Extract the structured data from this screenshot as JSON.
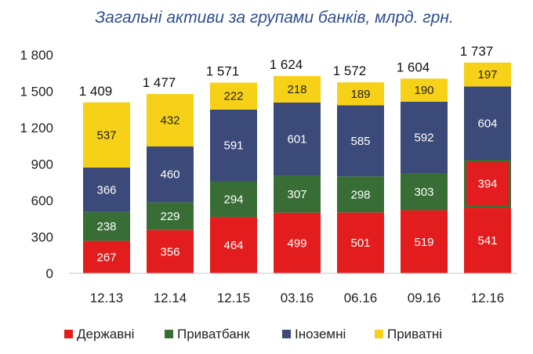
{
  "chart_data": {
    "type": "bar",
    "stacked": true,
    "title": "Загальні активи за групами банків, млрд. грн.",
    "xlabel": "",
    "ylabel": "",
    "ylim": [
      0,
      1800
    ],
    "yticks": [
      0,
      300,
      600,
      900,
      1200,
      1500,
      1800
    ],
    "ytick_labels": [
      "0",
      "300",
      "600",
      "900",
      "1 200",
      "1 500",
      "1 800"
    ],
    "categories": [
      "12.13",
      "12.14",
      "12.15",
      "03.16",
      "06.16",
      "09.16",
      "12.16"
    ],
    "totals": [
      1409,
      1477,
      1571,
      1624,
      1572,
      1604,
      1737
    ],
    "total_labels": [
      "1 409",
      "1 477",
      "1 571",
      "1 624",
      "1 572",
      "1 604",
      "1 737"
    ],
    "series": [
      {
        "name": "Державні",
        "color": "#e31d1d",
        "label_color": "#ffffff",
        "values": [
          267,
          356,
          464,
          499,
          501,
          519,
          541
        ]
      },
      {
        "name": "Приватбанк",
        "color": "#386e35",
        "label_color": "#ffffff",
        "values": [
          238,
          229,
          294,
          307,
          298,
          303,
          394
        ]
      },
      {
        "name": "Іноземні",
        "color": "#3b4a78",
        "label_color": "#ffffff",
        "values": [
          366,
          460,
          591,
          601,
          585,
          592,
          604
        ]
      },
      {
        "name": "Приватні",
        "color": "#f7d117",
        "label_color": "#222222",
        "values": [
          537,
          432,
          222,
          218,
          189,
          190,
          197
        ]
      }
    ],
    "highlight": {
      "category": "12.16",
      "series": "Приватбанк",
      "segment_color": "#e31d1d",
      "border_color": "#386e35"
    },
    "legend_position": "bottom",
    "grid": false
  }
}
